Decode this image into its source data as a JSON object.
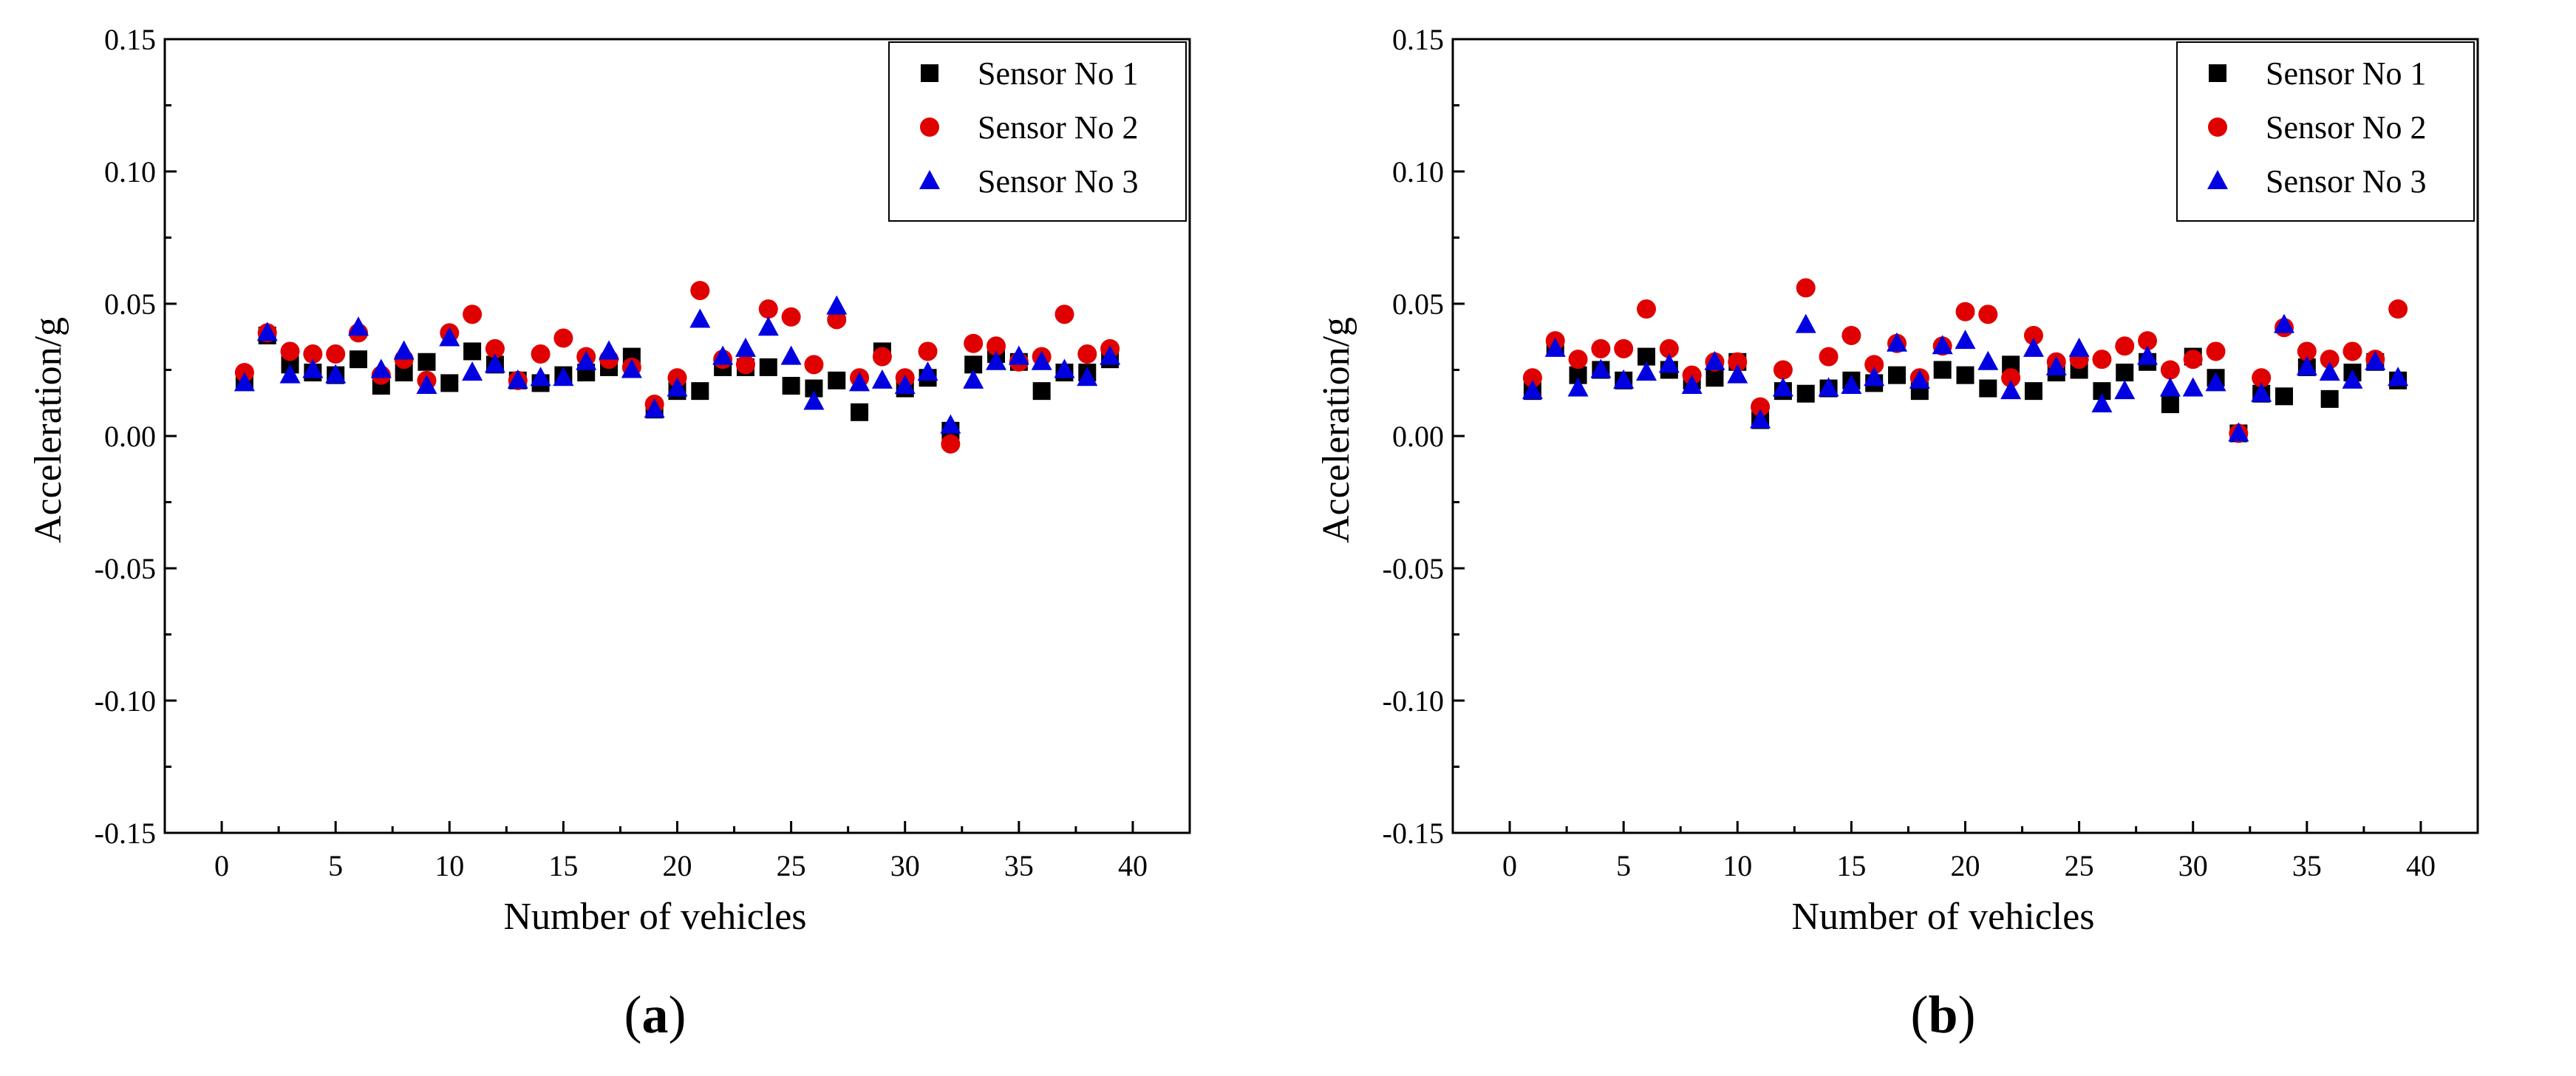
{
  "chart_data": [
    {
      "type": "scatter",
      "panel_label_open": "(",
      "panel_label_letter": "a",
      "panel_label_close": ")",
      "xlabel": "Number of vehicles",
      "ylabel": "Acceleration/g",
      "xlim": [
        -2.5,
        42.5
      ],
      "ylim": [
        -0.15,
        0.15
      ],
      "xticks": [
        0,
        5,
        10,
        15,
        20,
        25,
        30,
        35,
        40
      ],
      "yticks": [
        -0.15,
        -0.1,
        -0.05,
        0.0,
        0.05,
        0.1,
        0.15
      ],
      "yticklabels": [
        "-0.15",
        "-0.10",
        "-0.05",
        "0.00",
        "0.05",
        "0.10",
        "0.15"
      ],
      "legend_position": "top-right",
      "series": [
        {
          "name": "Sensor No 1",
          "marker": "square",
          "color": "#000000",
          "x": [
            1,
            2,
            3,
            4,
            5,
            6,
            7,
            8,
            9,
            10,
            11,
            12,
            13,
            14,
            15,
            16,
            17,
            18,
            19,
            20,
            21,
            22,
            23,
            24,
            25,
            26,
            27,
            28,
            29,
            30,
            31,
            32,
            33,
            34,
            35,
            36,
            37,
            38,
            39
          ],
          "y": [
            0.021,
            0.038,
            0.027,
            0.024,
            0.023,
            0.029,
            0.019,
            0.024,
            0.028,
            0.02,
            0.032,
            0.027,
            0.021,
            0.02,
            0.023,
            0.024,
            0.026,
            0.03,
            0.01,
            0.017,
            0.017,
            0.026,
            0.026,
            0.026,
            0.019,
            0.018,
            0.021,
            0.009,
            0.032,
            0.018,
            0.022,
            0.002,
            0.027,
            0.031,
            0.028,
            0.017,
            0.024,
            0.024,
            0.029
          ]
        },
        {
          "name": "Sensor No 2",
          "marker": "circle",
          "color": "#e00000",
          "x": [
            1,
            2,
            3,
            4,
            5,
            6,
            7,
            8,
            9,
            10,
            11,
            12,
            13,
            14,
            15,
            16,
            17,
            18,
            19,
            20,
            21,
            22,
            23,
            24,
            25,
            26,
            27,
            28,
            29,
            30,
            31,
            32,
            33,
            34,
            35,
            36,
            37,
            38,
            39
          ],
          "y": [
            0.024,
            0.039,
            0.032,
            0.031,
            0.031,
            0.039,
            0.023,
            0.029,
            0.021,
            0.039,
            0.046,
            0.033,
            0.021,
            0.031,
            0.037,
            0.03,
            0.029,
            0.026,
            0.012,
            0.022,
            0.055,
            0.029,
            0.027,
            0.048,
            0.045,
            0.027,
            0.044,
            0.022,
            0.03,
            0.022,
            0.032,
            -0.003,
            0.035,
            0.034,
            0.028,
            0.03,
            0.046,
            0.031,
            0.033
          ]
        },
        {
          "name": "Sensor No 3",
          "marker": "triangle",
          "color": "#0000e0",
          "x": [
            1,
            2,
            3,
            4,
            5,
            6,
            7,
            8,
            9,
            10,
            11,
            12,
            13,
            14,
            15,
            16,
            17,
            18,
            19,
            20,
            21,
            22,
            23,
            24,
            25,
            26,
            27,
            28,
            29,
            30,
            31,
            32,
            33,
            34,
            35,
            36,
            37,
            38,
            39
          ],
          "y": [
            0.02,
            0.039,
            0.023,
            0.025,
            0.023,
            0.041,
            0.025,
            0.032,
            0.019,
            0.037,
            0.024,
            0.027,
            0.021,
            0.022,
            0.022,
            0.028,
            0.032,
            0.025,
            0.01,
            0.018,
            0.044,
            0.03,
            0.033,
            0.041,
            0.03,
            0.013,
            0.049,
            0.02,
            0.021,
            0.019,
            0.024,
            0.004,
            0.021,
            0.028,
            0.03,
            0.028,
            0.025,
            0.022,
            0.03
          ]
        }
      ]
    },
    {
      "type": "scatter",
      "panel_label_open": "(",
      "panel_label_letter": "b",
      "panel_label_close": ")",
      "xlabel": "Number of vehicles",
      "ylabel": "Acceleration/g",
      "xlim": [
        -2.5,
        42.5
      ],
      "ylim": [
        -0.15,
        0.15
      ],
      "xticks": [
        0,
        5,
        10,
        15,
        20,
        25,
        30,
        35,
        40
      ],
      "yticks": [
        -0.15,
        -0.1,
        -0.05,
        0.0,
        0.05,
        0.1,
        0.15
      ],
      "yticklabels": [
        "-0.15",
        "-0.10",
        "-0.05",
        "0.00",
        "0.05",
        "0.10",
        "0.15"
      ],
      "legend_position": "top-right",
      "series": [
        {
          "name": "Sensor No 1",
          "marker": "square",
          "color": "#000000",
          "x": [
            1,
            2,
            3,
            4,
            5,
            6,
            7,
            8,
            9,
            10,
            11,
            12,
            13,
            14,
            15,
            16,
            17,
            18,
            19,
            20,
            21,
            22,
            23,
            24,
            25,
            26,
            27,
            28,
            29,
            30,
            31,
            32,
            33,
            34,
            35,
            36,
            37,
            38,
            39
          ],
          "y": [
            0.017,
            0.034,
            0.023,
            0.025,
            0.021,
            0.03,
            0.025,
            0.021,
            0.022,
            0.028,
            0.006,
            0.017,
            0.016,
            0.018,
            0.021,
            0.02,
            0.023,
            0.017,
            0.025,
            0.023,
            0.018,
            0.027,
            0.017,
            0.024,
            0.025,
            0.017,
            0.024,
            0.028,
            0.012,
            0.03,
            0.022,
            0.001,
            0.016,
            0.015,
            0.026,
            0.014,
            0.024,
            0.028,
            0.021
          ]
        },
        {
          "name": "Sensor No 2",
          "marker": "circle",
          "color": "#e00000",
          "x": [
            1,
            2,
            3,
            4,
            5,
            6,
            7,
            8,
            9,
            10,
            11,
            12,
            13,
            14,
            15,
            16,
            17,
            18,
            19,
            20,
            21,
            22,
            23,
            24,
            25,
            26,
            27,
            28,
            29,
            30,
            31,
            32,
            33,
            34,
            35,
            36,
            37,
            38,
            39
          ],
          "y": [
            0.022,
            0.036,
            0.029,
            0.033,
            0.033,
            0.048,
            0.033,
            0.023,
            0.028,
            0.028,
            0.011,
            0.025,
            0.056,
            0.03,
            0.038,
            0.027,
            0.035,
            0.022,
            0.034,
            0.047,
            0.046,
            0.022,
            0.038,
            0.028,
            0.029,
            0.029,
            0.034,
            0.036,
            0.025,
            0.029,
            0.032,
            0.001,
            0.022,
            0.041,
            0.032,
            0.029,
            0.032,
            0.029,
            0.048
          ]
        },
        {
          "name": "Sensor No 3",
          "marker": "triangle",
          "color": "#0000e0",
          "x": [
            1,
            2,
            3,
            4,
            5,
            6,
            7,
            8,
            9,
            10,
            11,
            12,
            13,
            14,
            15,
            16,
            17,
            18,
            19,
            20,
            21,
            22,
            23,
            24,
            25,
            26,
            27,
            28,
            29,
            30,
            31,
            32,
            33,
            34,
            35,
            36,
            37,
            38,
            39
          ],
          "y": [
            0.017,
            0.033,
            0.018,
            0.025,
            0.021,
            0.024,
            0.027,
            0.019,
            0.028,
            0.023,
            0.006,
            0.018,
            0.042,
            0.018,
            0.019,
            0.022,
            0.035,
            0.021,
            0.034,
            0.036,
            0.028,
            0.017,
            0.033,
            0.026,
            0.033,
            0.012,
            0.017,
            0.03,
            0.018,
            0.018,
            0.02,
            0.001,
            0.016,
            0.042,
            0.026,
            0.024,
            0.021,
            0.028,
            0.022
          ]
        }
      ]
    }
  ]
}
